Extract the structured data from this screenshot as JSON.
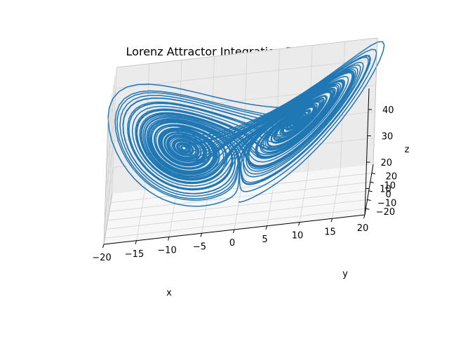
{
  "chart_data": {
    "type": "line",
    "projection": "3d",
    "title": "Lorenz Attractor Integration Example",
    "xlabel": "x",
    "ylabel": "y",
    "zlabel": "z",
    "xlim": [
      -20,
      20
    ],
    "ylim": [
      -27,
      30
    ],
    "zlim": [
      0,
      48
    ],
    "xticks": [
      -20,
      -15,
      -10,
      -5,
      0,
      5,
      10,
      15,
      20
    ],
    "yticks": [
      -20,
      -10,
      0,
      10,
      20
    ],
    "zticks": [
      10,
      20,
      30,
      40
    ],
    "grid": true,
    "line_color": "#1f77b4",
    "pane_colors": {
      "x": "#f2f2f2",
      "y": "#ebebeb",
      "z": "#f7f7f7"
    },
    "series": [
      {
        "equation": "lorenz",
        "params": {
          "sigma": 10,
          "rho": 28,
          "beta": 2.6667
        },
        "initial": [
          0,
          1,
          1.05
        ],
        "dt": 0.01,
        "steps": 10000,
        "values": null
      }
    ]
  }
}
